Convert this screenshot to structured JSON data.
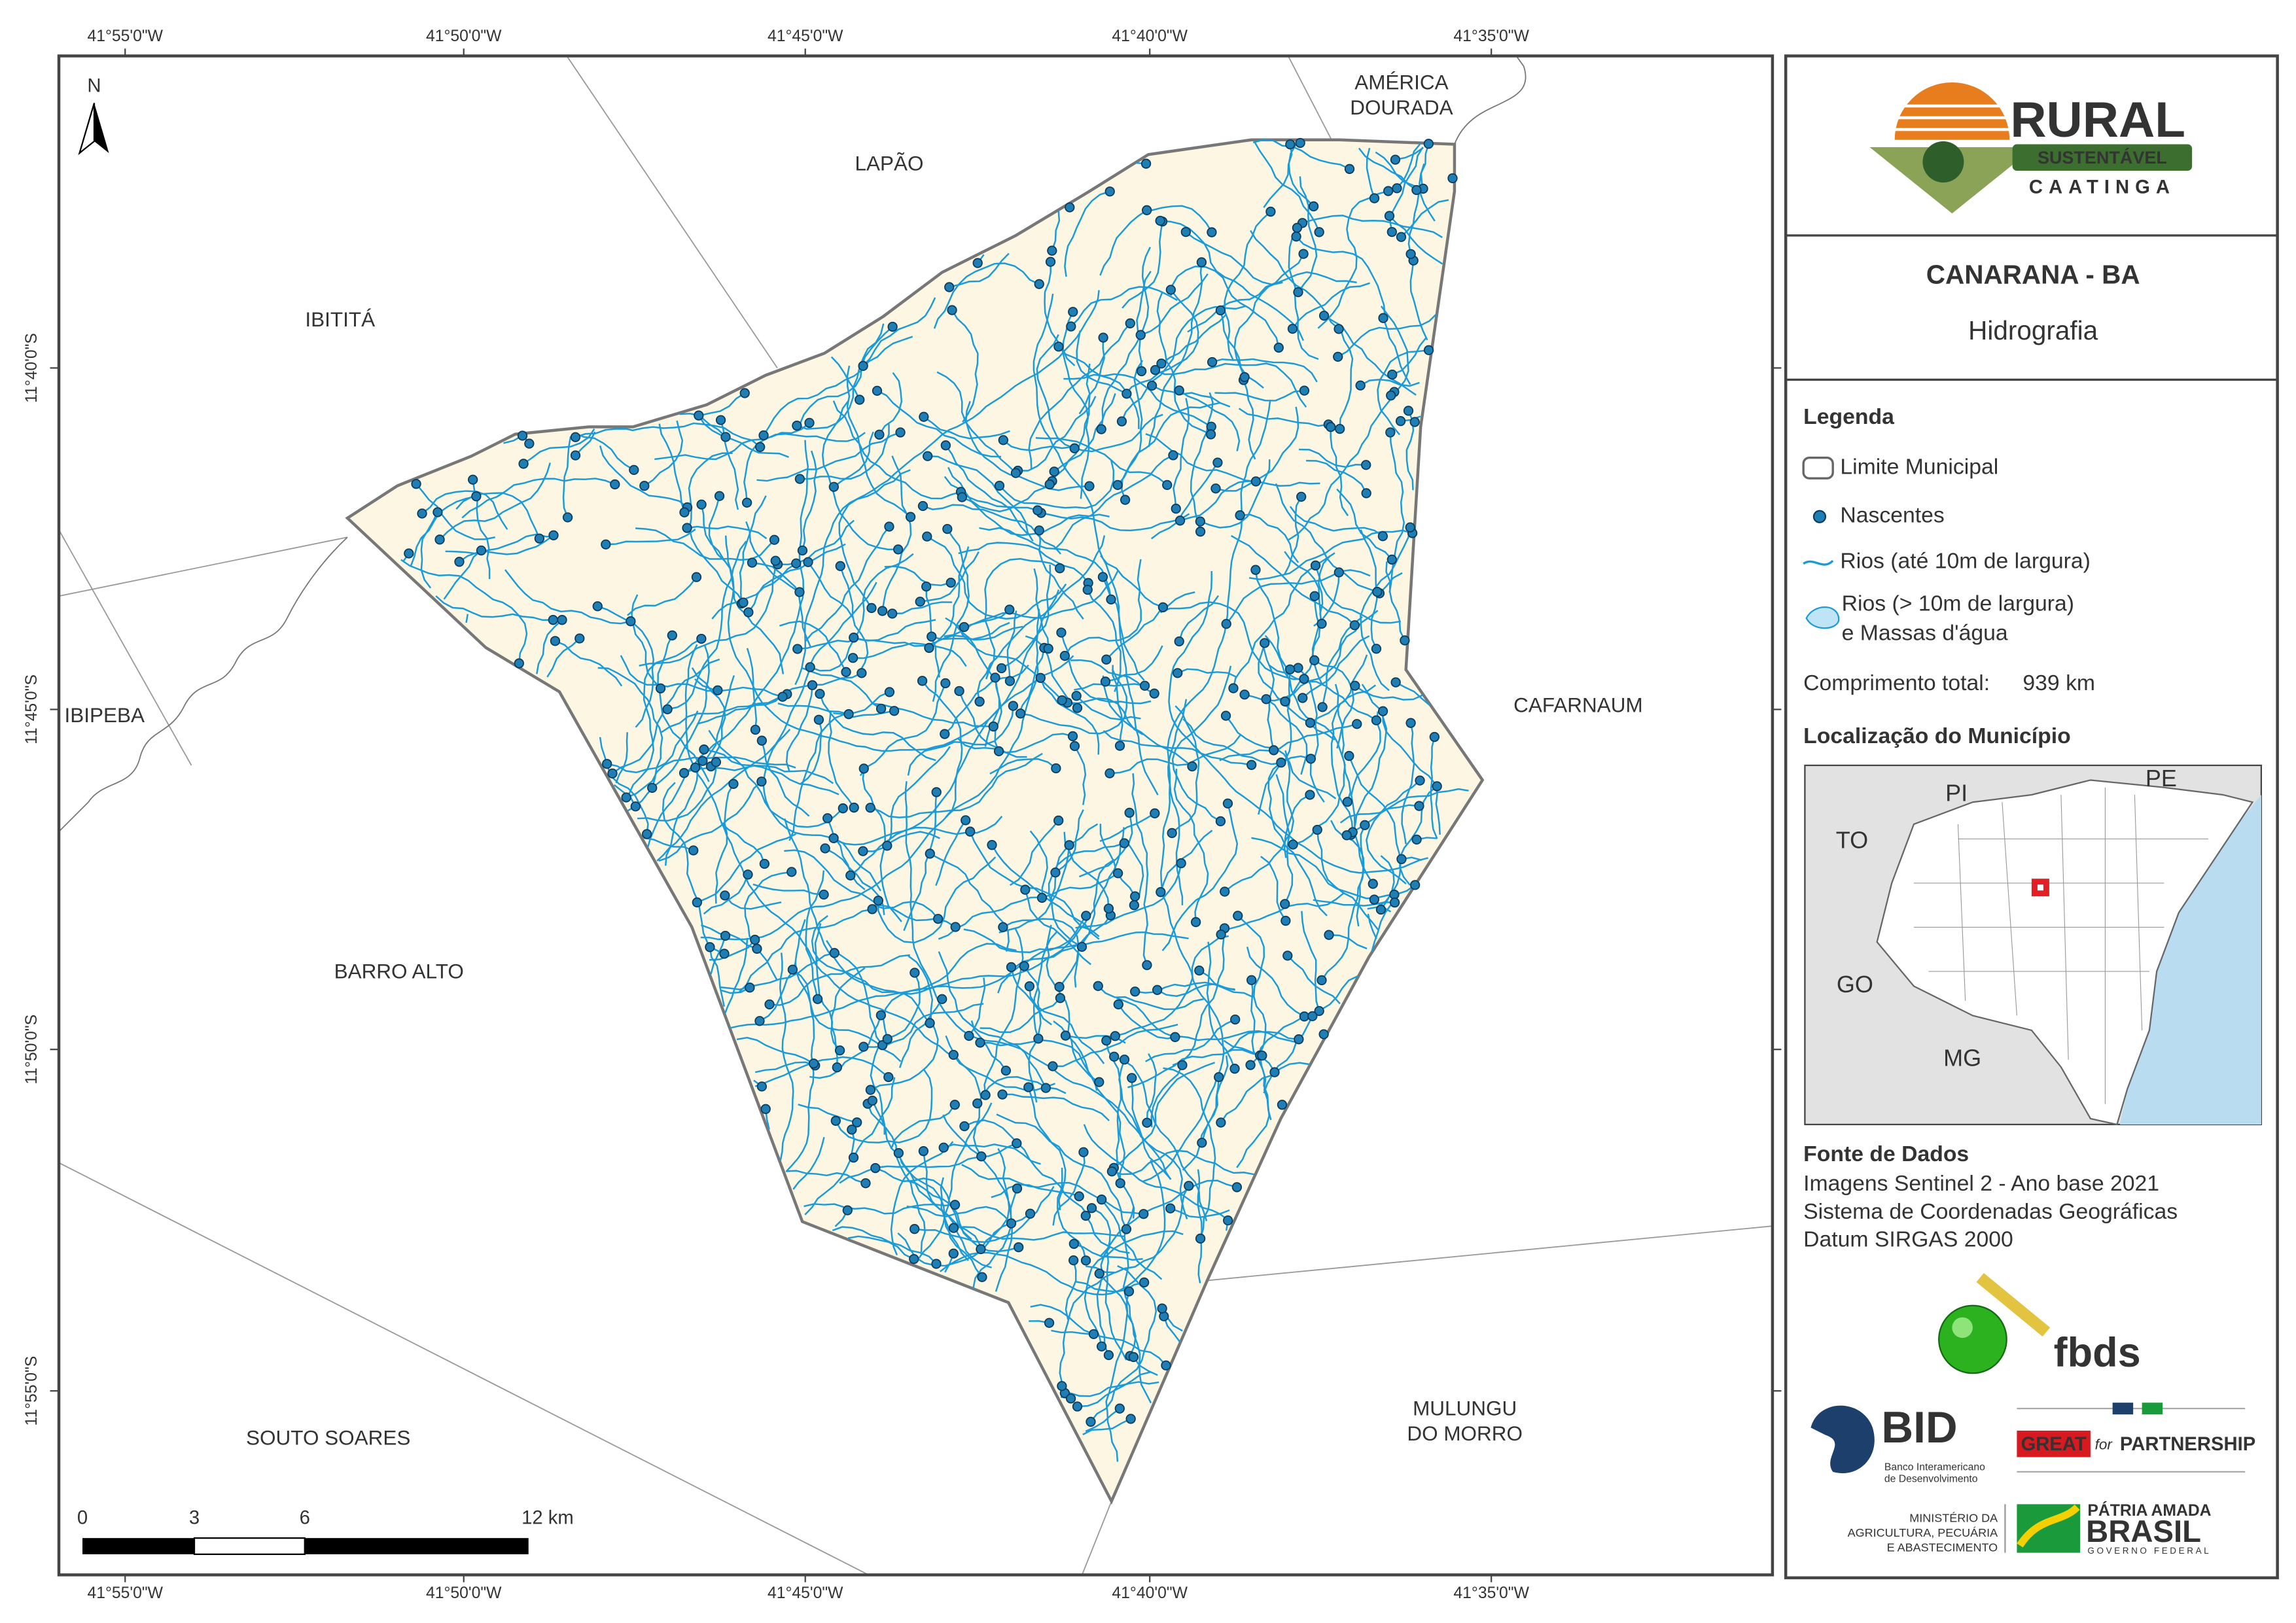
{
  "map": {
    "north": "N",
    "lon_ticks": [
      "41°55'0\"W",
      "41°50'0\"W",
      "41°45'0\"W",
      "41°40'0\"W",
      "41°35'0\"W"
    ],
    "lat_ticks": [
      "11°40'0\"S",
      "11°45'0\"S",
      "11°50'0\"S",
      "11°55'0\"S"
    ],
    "neighbors": [
      [
        "AMÉRICA",
        "DOURADA"
      ],
      [
        "LAPÃO"
      ],
      [
        "IBITITÁ"
      ],
      [
        "IBIPEBA"
      ],
      [
        "CAFARNAUM"
      ],
      [
        "BARRO ALTO"
      ],
      [
        "SOUTO SOARES"
      ],
      [
        "MULUNGU",
        "DO MORRO"
      ]
    ],
    "scale_labels": [
      "0",
      "3",
      "6",
      "12 km"
    ]
  },
  "header": {
    "logo": {
      "rural": "RURAL",
      "sustentavel": "SUSTENTÁVEL",
      "caatinga": "CAATINGA"
    },
    "title": "CANARANA - BA",
    "subtitle": "Hidrografia"
  },
  "legend": {
    "title": "Legenda",
    "items": [
      "Limite Municipal",
      "Nascentes",
      "Rios (até 10m de largura)"
    ],
    "lakes": [
      "Rios (> 10m de largura)",
      "e Massas d'água"
    ],
    "total_label": "Comprimento total:",
    "total_value": "939 km"
  },
  "location": {
    "title": "Localização do Município",
    "states": [
      "PI",
      "PE",
      "TO",
      "GO",
      "MG"
    ]
  },
  "sources": {
    "title": "Fonte de Dados",
    "lines": [
      "Imagens Sentinel 2 - Ano base 2021",
      "Sistema de Coordenadas Geográficas",
      "Datum SIRGAS 2000"
    ]
  },
  "logos": {
    "fbds": "fbds",
    "bid": "BID",
    "bid_lines": [
      "Banco Interamericano",
      "de Desenvolvimento"
    ],
    "great": "GREAT",
    "great_for": "for",
    "partnership": "PARTNERSHIP",
    "ministerio": [
      "MINISTÉRIO DA",
      "AGRICULTURA, PECUÁRIA",
      "E ABASTECIMENTO"
    ],
    "patria": "PÁTRIA AMADA",
    "brasil": "BRASIL",
    "governo": "GOVERNO FEDERAL"
  }
}
